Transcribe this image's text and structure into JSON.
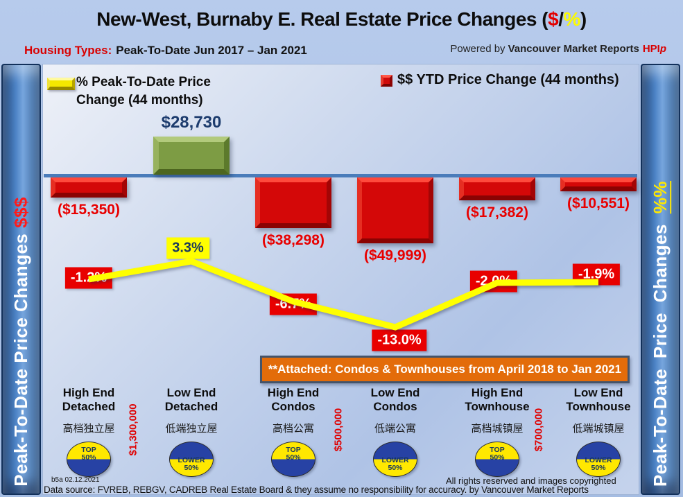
{
  "header": {
    "title_prefix": "New-West, Burnaby E. Real Estate Price Changes (",
    "title_dollar": "$",
    "title_slash": "/",
    "title_percent": "%",
    "title_suffix": ")",
    "subtitle_label": "Housing Types:",
    "subtitle_text": "Peak-To-Date Jun 2017 – Jan 2021",
    "powered_prefix": "Powered by",
    "powered_brand": "Vancouver Market Reports",
    "powered_hpi": "HPI",
    "powered_hpi_p": "p"
  },
  "legend": {
    "line_label_line1": "% Peak-To-Date Price",
    "line_label_line2": "Change (44 months)",
    "bar_label": "$$ YTD Price Change (44 months)"
  },
  "sidebars": {
    "left_text": "Peak-To-Date Price Changes ",
    "left_accent": "$$$",
    "right_text": "Peak-To-Date Price Changes ",
    "right_accent": "%%"
  },
  "banner": {
    "text": "**Attached: Condos & Townhouses from April 2018 to Jan 2021"
  },
  "colors": {
    "bar_negative": "#d40808",
    "bar_positive": "#7d9c44",
    "line": "#ffff00",
    "label_red": "#e80000",
    "label_navy": "#1d3c6e",
    "banner_orange": "#e36c0a",
    "sidebar_blue": "#4d83c6"
  },
  "chart_data": {
    "type": "bar+line",
    "title": "New-West, Burnaby E. Real Estate Price Changes ($/%)",
    "period": "Peak-To-Date Jun 2017 – Jan 2021",
    "categories": [
      {
        "en": [
          "High End",
          "Detached"
        ],
        "zh": "高档独立屋",
        "badge": [
          "TOP",
          "50%"
        ],
        "badge_style": "top"
      },
      {
        "en": [
          "Low End",
          "Detached"
        ],
        "zh": "低端独立屋",
        "badge": [
          "LOWER",
          "50%"
        ],
        "badge_style": "lower"
      },
      {
        "en": [
          "High End",
          "Condos"
        ],
        "zh": "高档公寓",
        "badge": [
          "TOP",
          "50%"
        ],
        "badge_style": "top"
      },
      {
        "en": [
          "Low End",
          "Condos"
        ],
        "zh": "低端公寓",
        "badge": [
          "LOWER",
          "50%"
        ],
        "badge_style": "lower"
      },
      {
        "en": [
          "High End",
          "Townhouse"
        ],
        "zh": "高档城镇屋",
        "badge": [
          "TOP",
          "50%"
        ],
        "badge_style": "top"
      },
      {
        "en": [
          "Low End",
          "Townhouse"
        ],
        "zh": "低端城镇屋",
        "badge": [
          "LOWER",
          "50%"
        ],
        "badge_style": "lower"
      }
    ],
    "series": [
      {
        "name": "$$ YTD Price Change (44 months)",
        "type": "bar",
        "values": [
          -15350,
          28730,
          -38298,
          -49999,
          -17382,
          -10551
        ],
        "labels": [
          "($15,350)",
          "$28,730",
          "($38,298)",
          "($49,999)",
          "($17,382)",
          "($10,551)"
        ]
      },
      {
        "name": "% Peak-To-Date Price Change (44 months)",
        "type": "line",
        "values": [
          -1.2,
          3.3,
          -6.7,
          -13.0,
          -2.0,
          -1.9
        ],
        "labels": [
          "-1.2%",
          "3.3%",
          "-6.7%",
          "-13.0%",
          "-2.0%",
          "-1.9%"
        ]
      }
    ],
    "price_thresholds": [
      {
        "between": [
          0,
          1
        ],
        "label": "$1,300,000"
      },
      {
        "between": [
          2,
          3
        ],
        "label": "$500,000"
      },
      {
        "between": [
          4,
          5
        ],
        "label": "$700,000"
      }
    ],
    "baseline_value": 0,
    "legend_position": "top"
  },
  "footer": {
    "version": "b5a 02.12.2021",
    "rights": "All rights reserved and  images copyrighted",
    "datasource": "Data source: FVREB, REBGV, CADREB Real Estate Board & they assume no responsibility for accuracy. by Vancouver Market Reports"
  }
}
